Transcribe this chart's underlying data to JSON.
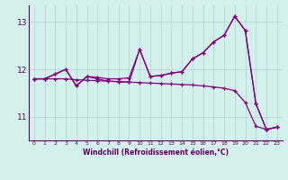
{
  "x": [
    0,
    1,
    2,
    3,
    4,
    5,
    6,
    7,
    8,
    9,
    10,
    11,
    12,
    13,
    14,
    15,
    16,
    17,
    18,
    19,
    20,
    21,
    22,
    23
  ],
  "line_straight": [
    11.8,
    11.8,
    11.8,
    11.8,
    11.78,
    11.77,
    11.76,
    11.75,
    11.74,
    11.73,
    11.72,
    11.71,
    11.7,
    11.69,
    11.68,
    11.67,
    11.65,
    11.63,
    11.6,
    11.55,
    11.3,
    10.8,
    10.73,
    10.78
  ],
  "line_upper": [
    11.8,
    11.8,
    11.9,
    12.0,
    11.65,
    11.85,
    11.83,
    11.8,
    11.8,
    11.82,
    12.42,
    11.85,
    11.87,
    11.92,
    11.95,
    12.22,
    12.35,
    12.58,
    12.72,
    13.12,
    12.82,
    11.28,
    10.73,
    10.78
  ],
  "line_zigzag": [
    11.8,
    11.8,
    11.9,
    12.0,
    11.65,
    11.85,
    11.8,
    11.75,
    11.74,
    11.73,
    12.42,
    11.85,
    11.87,
    11.92,
    11.95,
    12.22,
    12.35,
    12.58,
    12.72,
    13.12,
    12.82,
    11.28,
    10.73,
    10.78
  ],
  "ylim": [
    10.5,
    13.35
  ],
  "yticks": [
    11,
    12,
    13
  ],
  "xticks": [
    0,
    1,
    2,
    3,
    4,
    5,
    6,
    7,
    8,
    9,
    10,
    11,
    12,
    13,
    14,
    15,
    16,
    17,
    18,
    19,
    20,
    21,
    22,
    23
  ],
  "xlabel": "Windchill (Refroidissement éolien,°C)",
  "line_color": "#800080",
  "bg_color": "#d4f0ec",
  "grid_color": "#aed4ce",
  "spine_color": "#600060"
}
